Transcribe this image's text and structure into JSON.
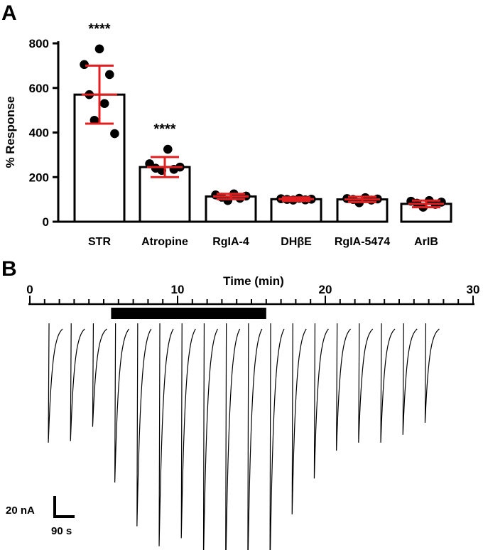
{
  "chart_data": [
    {
      "panel": "A",
      "type": "bar",
      "ylabel": "% Response",
      "ylim": [
        0,
        800
      ],
      "yticks": [
        0,
        200,
        400,
        600,
        800
      ],
      "categories": [
        "STR",
        "Atropine",
        "RgIA-4",
        "DHβE",
        "RgIA-5474",
        "ArIB"
      ],
      "values": [
        570,
        245,
        113,
        101,
        100,
        80
      ],
      "error": [
        130,
        45,
        12,
        8,
        12,
        15
      ],
      "significance": [
        "****",
        "****",
        "",
        "",
        "",
        ""
      ],
      "points": [
        [
          775,
          705,
          660,
          570,
          530,
          455,
          395
        ],
        [
          325,
          260,
          245,
          240,
          235,
          230
        ],
        [
          125,
          120,
          115,
          110,
          105,
          95
        ],
        [
          105,
          103,
          101,
          100,
          98,
          97
        ],
        [
          108,
          104,
          102,
          100,
          97,
          85
        ],
        [
          95,
          92,
          88,
          83,
          78,
          65
        ]
      ],
      "colors": {
        "bar_edge": "#000000",
        "points": "#000000",
        "error_bars": "#e02020"
      }
    },
    {
      "panel": "B",
      "type": "line",
      "xlabel": "Time (min)",
      "xlim": [
        0,
        30
      ],
      "xticks": [
        0,
        10,
        20,
        30
      ],
      "application_bar": [
        5.5,
        16
      ],
      "sweep_times": [
        1.3,
        2.8,
        4.3,
        5.8,
        7.3,
        8.8,
        10.3,
        11.8,
        13.3,
        14.8,
        16.3,
        17.8,
        19.3,
        20.8,
        22.3,
        23.8,
        25.3,
        26.8
      ],
      "sweep_peaks": [
        -150,
        -148,
        -130,
        -200,
        -255,
        -280,
        -270,
        -300,
        -315,
        -310,
        -310,
        -240,
        -195,
        -160,
        -150,
        -150,
        -140,
        -125
      ],
      "scale_bar": {
        "current": "20 nA",
        "time": "90 s"
      },
      "colors": {
        "trace": "#000000",
        "bar": "#000000"
      }
    }
  ],
  "panel_letters": [
    "A",
    "B"
  ]
}
